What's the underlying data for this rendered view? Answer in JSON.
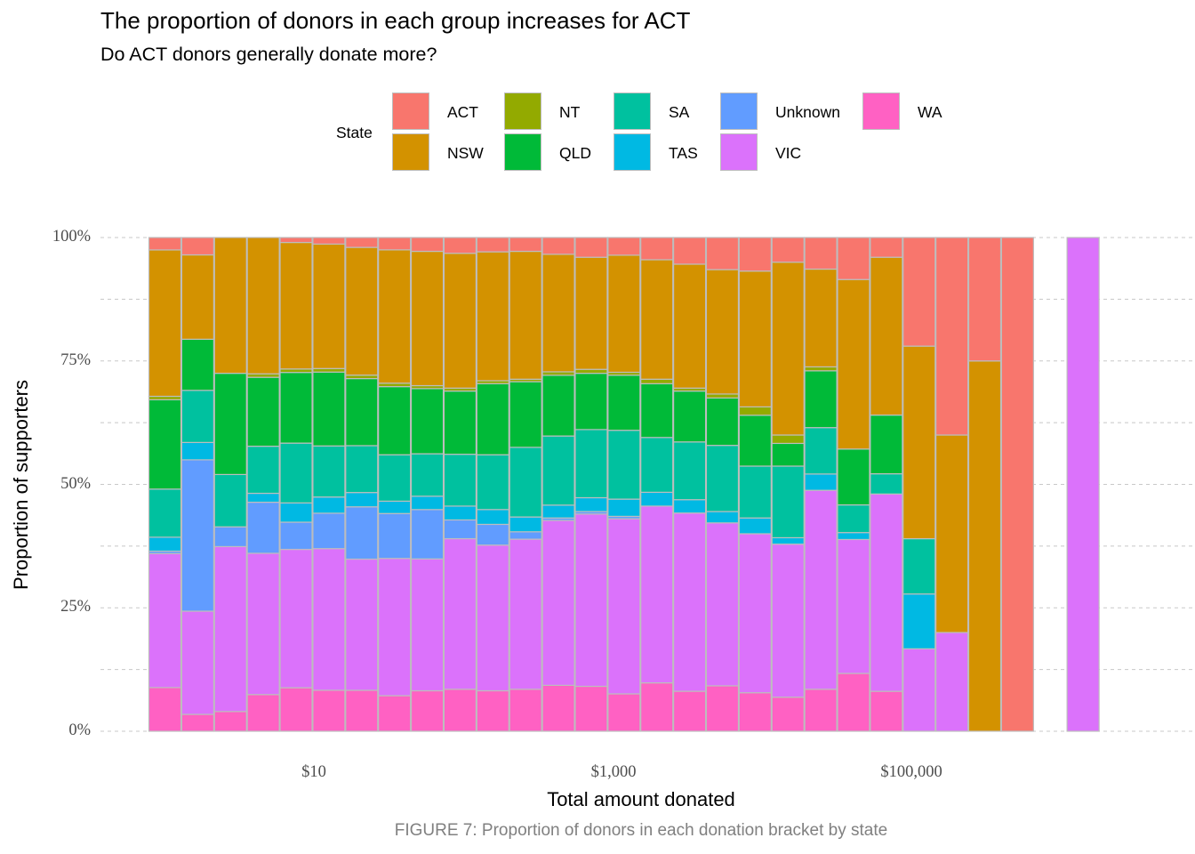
{
  "title": "The proportion of donors in each group increases for ACT",
  "subtitle": "Do ACT donors generally donate more?",
  "caption": "FIGURE 7: Proportion of donors in each donation bracket by state",
  "chart_data": {
    "type": "bar",
    "stacked": "proportion",
    "xlabel": "Total amount donated",
    "ylabel": "Proportion of supporters",
    "ylim": [
      0,
      1
    ],
    "y_ticks": [
      "0%",
      "25%",
      "50%",
      "75%",
      "100%"
    ],
    "x_ticks": [
      "$10",
      "$1,000",
      "$100,000"
    ],
    "x_scale": "log10",
    "grid": true,
    "legend": {
      "title": "State",
      "position": "top",
      "entries": [
        "ACT",
        "NSW",
        "NT",
        "QLD",
        "SA",
        "TAS",
        "Unknown",
        "VIC",
        "WA"
      ]
    },
    "series": [
      {
        "name": "ACT",
        "color": "#F8766D"
      },
      {
        "name": "NSW",
        "color": "#D39200"
      },
      {
        "name": "NT",
        "color": "#93AA00"
      },
      {
        "name": "QLD",
        "color": "#00BA38"
      },
      {
        "name": "SA",
        "color": "#00C19F"
      },
      {
        "name": "TAS",
        "color": "#00B9E3"
      },
      {
        "name": "Unknown",
        "color": "#619CFF"
      },
      {
        "name": "VIC",
        "color": "#DB72FB"
      },
      {
        "name": "WA",
        "color": "#FF61C3"
      }
    ],
    "bars": [
      {
        "ACT": 2.5,
        "NSW": 29.5,
        "NT": 0.7,
        "QLD": 18.0,
        "SA": 9.7,
        "TAS": 2.8,
        "Unknown": 0.5,
        "VIC": 27.0,
        "WA": 8.8
      },
      {
        "ACT": 3.5,
        "NSW": 17.0,
        "NT": 0,
        "QLD": 10.3,
        "SA": 10.5,
        "TAS": 3.5,
        "Unknown": 30.5,
        "VIC": 20.8,
        "WA": 3.4
      },
      {
        "ACT": 0,
        "NSW": 27.5,
        "NT": 0,
        "QLD": 20.5,
        "SA": 10.6,
        "TAS": 0,
        "Unknown": 4.0,
        "VIC": 33.4,
        "WA": 4.0
      },
      {
        "ACT": 0,
        "NSW": 27.5,
        "NT": 0.7,
        "QLD": 13.9,
        "SA": 9.5,
        "TAS": 1.8,
        "Unknown": 10.3,
        "VIC": 28.5,
        "WA": 7.4
      },
      {
        "ACT": 1.0,
        "NSW": 25.6,
        "NT": 0.7,
        "QLD": 14.3,
        "SA": 12.1,
        "TAS": 3.9,
        "Unknown": 5.5,
        "VIC": 28.0,
        "WA": 8.8
      },
      {
        "ACT": 1.3,
        "NSW": 24.6,
        "NT": 0.7,
        "QLD": 14.6,
        "SA": 10.1,
        "TAS": 3.2,
        "Unknown": 7.0,
        "VIC": 28.0,
        "WA": 8.1
      },
      {
        "ACT": 2.0,
        "NSW": 25.9,
        "NT": 0.7,
        "QLD": 13.6,
        "SA": 9.5,
        "TAS": 2.9,
        "Unknown": 10.6,
        "VIC": 26.6,
        "WA": 8.3
      },
      {
        "ACT": 2.5,
        "NSW": 27.0,
        "NT": 0.7,
        "QLD": 13.8,
        "SA": 9.4,
        "TAS": 2.5,
        "Unknown": 9.1,
        "VIC": 27.8,
        "WA": 7.2
      },
      {
        "ACT": 2.8,
        "NSW": 27.2,
        "NT": 0.6,
        "QLD": 13.2,
        "SA": 8.6,
        "TAS": 2.7,
        "Unknown": 10.0,
        "VIC": 26.7,
        "WA": 8.2
      },
      {
        "ACT": 3.2,
        "NSW": 27.3,
        "NT": 0.6,
        "QLD": 12.8,
        "SA": 10.5,
        "TAS": 2.8,
        "Unknown": 3.8,
        "VIC": 30.5,
        "WA": 8.5
      },
      {
        "ACT": 2.9,
        "NSW": 26.1,
        "NT": 0.6,
        "QLD": 14.4,
        "SA": 11.1,
        "TAS": 3.0,
        "Unknown": 4.2,
        "VIC": 29.5,
        "WA": 8.2
      },
      {
        "ACT": 2.8,
        "NSW": 25.9,
        "NT": 0.5,
        "QLD": 13.3,
        "SA": 14.1,
        "TAS": 3.0,
        "Unknown": 1.5,
        "VIC": 30.4,
        "WA": 8.5
      },
      {
        "ACT": 3.4,
        "NSW": 23.8,
        "NT": 0.7,
        "QLD": 12.3,
        "SA": 14.0,
        "TAS": 2.6,
        "Unknown": 0.5,
        "VIC": 33.4,
        "WA": 9.3
      },
      {
        "ACT": 4.0,
        "NSW": 22.7,
        "NT": 0.8,
        "QLD": 11.4,
        "SA": 13.8,
        "TAS": 2.8,
        "Unknown": 0.5,
        "VIC": 34.9,
        "WA": 9.1
      },
      {
        "ACT": 3.6,
        "NSW": 23.8,
        "NT": 0.6,
        "QLD": 11.2,
        "SA": 14.0,
        "TAS": 3.5,
        "Unknown": 0.5,
        "VIC": 35.6,
        "WA": 7.6
      },
      {
        "ACT": 4.5,
        "NSW": 24.2,
        "NT": 0.9,
        "QLD": 10.9,
        "SA": 11.1,
        "TAS": 2.8,
        "Unknown": 0,
        "VIC": 35.8,
        "WA": 9.8
      },
      {
        "ACT": 5.4,
        "NSW": 25.1,
        "NT": 0.6,
        "QLD": 10.3,
        "SA": 11.7,
        "TAS": 2.7,
        "Unknown": 0,
        "VIC": 36.1,
        "WA": 8.1
      },
      {
        "ACT": 6.5,
        "NSW": 25.2,
        "NT": 0.8,
        "QLD": 9.6,
        "SA": 13.4,
        "TAS": 2.3,
        "Unknown": 0,
        "VIC": 33.0,
        "WA": 9.2
      },
      {
        "ACT": 6.8,
        "NSW": 27.5,
        "NT": 1.7,
        "QLD": 10.3,
        "SA": 10.5,
        "TAS": 3.2,
        "Unknown": 0,
        "VIC": 32.2,
        "WA": 7.8
      },
      {
        "ACT": 5.0,
        "NSW": 35.0,
        "NT": 1.7,
        "QLD": 4.6,
        "SA": 14.5,
        "TAS": 1.3,
        "Unknown": 0,
        "VIC": 31.0,
        "WA": 6.9
      },
      {
        "ACT": 6.4,
        "NSW": 19.8,
        "NT": 0.8,
        "QLD": 11.5,
        "SA": 9.4,
        "TAS": 3.3,
        "Unknown": 0,
        "VIC": 40.3,
        "WA": 8.5
      },
      {
        "ACT": 8.5,
        "NSW": 34.3,
        "NT": 0,
        "QLD": 11.3,
        "SA": 5.6,
        "TAS": 1.4,
        "Unknown": 0,
        "VIC": 27.1,
        "WA": 11.7
      },
      {
        "ACT": 4.0,
        "NSW": 32.0,
        "NT": 0,
        "QLD": 11.9,
        "SA": 4.1,
        "TAS": 0,
        "Unknown": 0,
        "VIC": 40.0,
        "WA": 8.1
      },
      {
        "ACT": 22.0,
        "NSW": 39.0,
        "NT": 0,
        "QLD": 0,
        "SA": 11.2,
        "TAS": 11.1,
        "Unknown": 0,
        "VIC": 16.7,
        "WA": 0
      },
      {
        "ACT": 40.0,
        "NSW": 40.0,
        "NT": 0,
        "QLD": 0,
        "SA": 0,
        "TAS": 0,
        "Unknown": 0,
        "VIC": 20.0,
        "WA": 0
      },
      {
        "ACT": 25.0,
        "NSW": 75.0,
        "NT": 0,
        "QLD": 0,
        "SA": 0,
        "TAS": 0,
        "Unknown": 0,
        "VIC": 0,
        "WA": 0
      },
      {
        "ACT": 100,
        "NSW": 0,
        "NT": 0,
        "QLD": 0,
        "SA": 0,
        "TAS": 0,
        "Unknown": 0,
        "VIC": 0,
        "WA": 0
      },
      null,
      {
        "ACT": 0,
        "NSW": 0,
        "NT": 0,
        "QLD": 0,
        "SA": 0,
        "TAS": 0,
        "Unknown": 0,
        "VIC": 100,
        "WA": 0
      }
    ]
  }
}
